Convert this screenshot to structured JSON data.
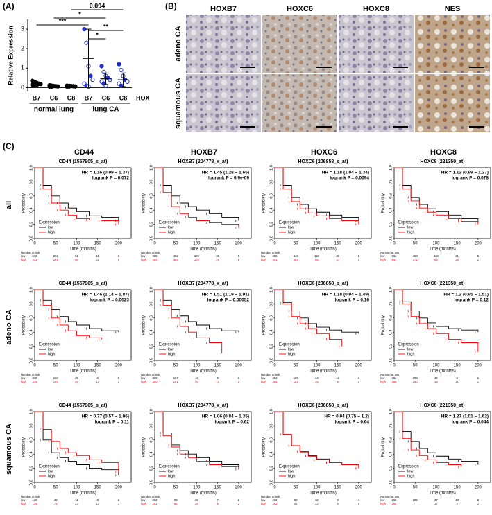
{
  "panel_labels": [
    "(A)",
    "(B)",
    "(C)"
  ],
  "km_axes": {
    "xlim": [
      0,
      230
    ],
    "ylim": [
      0,
      1
    ],
    "xticks": [
      0,
      50,
      100,
      150,
      200
    ],
    "yticks": [
      {
        "value": 0,
        "label": "0.0"
      },
      {
        "value": 0.2,
        "label": "0.2"
      },
      {
        "value": 0.4,
        "label": "0.4"
      },
      {
        "value": 0.6,
        "label": "0.6"
      },
      {
        "value": 0.8,
        "label": "0.8"
      },
      {
        "value": 1,
        "label": "1.0"
      }
    ],
    "xlabel": "Time (months)",
    "ylabel": "Probability",
    "legend_title": "Expression",
    "risk_title": "Number at risk",
    "risk_x": [
      0,
      50,
      100,
      150,
      200
    ]
  },
  "columns": [
    "CD44",
    "HOXB7",
    "HOXC6",
    "HOXC8"
  ],
  "rows": [
    "all",
    "adeno CA",
    "squamous CA"
  ],
  "panel_b": {
    "columns": [
      "HOXB7",
      "HOXC6",
      "HOXC8",
      "NES"
    ],
    "rows": [
      "adeno CA",
      "squamous CA"
    ]
  },
  "chart_data": [
    {
      "type": "dot",
      "ylabel": "Relative Expression",
      "categories": [
        "B7",
        "C6",
        "C8",
        "B7",
        "C6",
        "C8"
      ],
      "axis_label": "HOX",
      "groups": [
        "normal lung",
        "lung CA"
      ],
      "ylim": [
        -0.2,
        3.5
      ],
      "yticks": [
        0,
        1,
        2,
        3
      ],
      "colors": [
        "#000000",
        "#000000",
        "#000000",
        "#2233cc",
        "#2233cc",
        "#2233cc"
      ],
      "points": [
        [
          0.35,
          0.3,
          0.25,
          0.2,
          0.18,
          0.15,
          0.12,
          0.1
        ],
        [
          0.12,
          0.1,
          0.08,
          0.07,
          0.06,
          0.05,
          0.05
        ],
        [
          0.1,
          0.09,
          0.08,
          0.07,
          0.06,
          0.05,
          0.05
        ],
        [
          3.0,
          2.3,
          1.1,
          0.6,
          0.4,
          0.2,
          0.1,
          0.05
        ],
        [
          1.1,
          0.8,
          0.6,
          0.5,
          0.4,
          0.3,
          0.2,
          0.1
        ],
        [
          1.2,
          0.9,
          0.6,
          0.4,
          0.3,
          0.2,
          0.1
        ]
      ],
      "mean": [
        0.2,
        0.08,
        0.07,
        1.5,
        0.45,
        0.4
      ],
      "sd": [
        0.1,
        0.03,
        0.03,
        1.5,
        0.3,
        0.35
      ],
      "brackets": [
        {
          "from": 2,
          "to": 5,
          "label": "0.094"
        },
        {
          "from": 1,
          "to": 4,
          "label": "*"
        },
        {
          "from": 0,
          "to": 3,
          "label": "***"
        },
        {
          "from": 3,
          "to": 5,
          "label": "**"
        },
        {
          "from": 3,
          "to": 4,
          "label": "*"
        }
      ]
    },
    {
      "type": "km",
      "title": "CD44 (1557905_s_at)",
      "hr": "HR = 1.16 (0.99 − 1.37)",
      "logrank": "logrank P = 0.072",
      "x": [
        0,
        20,
        40,
        60,
        80,
        100,
        130,
        160,
        200
      ],
      "series": [
        {
          "name": "low",
          "color": "#000000",
          "values": [
            1,
            0.75,
            0.6,
            0.5,
            0.43,
            0.38,
            0.32,
            0.3,
            0.25
          ],
          "at_risk": [
            572,
            262,
            51,
            15,
            0
          ]
        },
        {
          "name": "high",
          "color": "#ff0000",
          "values": [
            1,
            0.7,
            0.5,
            0.4,
            0.33,
            0.28,
            0.26,
            0.25,
            0.2
          ],
          "at_risk": [
            573,
            284,
            88,
            31,
            6
          ]
        }
      ]
    },
    {
      "type": "km",
      "title": "HOXB7 (204778_x_at)",
      "hr": "HR = 1.45 (1.28 − 1.65)",
      "logrank": "logrank P = 6.9e-09",
      "x": [
        0,
        20,
        40,
        60,
        80,
        100,
        130,
        160,
        200
      ],
      "series": [
        {
          "name": "low",
          "color": "#000000",
          "values": [
            1,
            0.75,
            0.6,
            0.5,
            0.45,
            0.4,
            0.35,
            0.3,
            0.25
          ],
          "at_risk": [
            965,
            462,
            102,
            26,
            5
          ]
        },
        {
          "name": "high",
          "color": "#ff0000",
          "values": [
            1,
            0.65,
            0.45,
            0.35,
            0.3,
            0.25,
            0.22,
            0.2,
            0.15
          ],
          "at_risk": [
            960,
            366,
            101,
            29,
            6
          ]
        }
      ]
    },
    {
      "type": "km",
      "title": "HOXC6 (206858_s_at)",
      "hr": "HR = 1.18 (1.04 − 1.34)",
      "logrank": "logrank P = 0.0094",
      "x": [
        0,
        20,
        40,
        60,
        80,
        100,
        130,
        160,
        200
      ],
      "series": [
        {
          "name": "low",
          "color": "#000000",
          "values": [
            1,
            0.75,
            0.58,
            0.48,
            0.42,
            0.37,
            0.33,
            0.3,
            0.25
          ],
          "at_risk": [
            965,
            445,
            118,
            33,
            6
          ]
        },
        {
          "name": "high",
          "color": "#ff0000",
          "values": [
            1,
            0.7,
            0.52,
            0.42,
            0.36,
            0.32,
            0.28,
            0.25,
            0.2
          ],
          "at_risk": [
            961,
            383,
            85,
            24,
            1
          ]
        }
      ]
    },
    {
      "type": "km",
      "title": "HOXC8 (221350_at)",
      "hr": "HR = 1.12 (0.99 − 1.27)",
      "logrank": "logrank P = 0.078",
      "x": [
        0,
        20,
        40,
        60,
        80,
        100,
        130,
        160,
        200
      ],
      "series": [
        {
          "name": "low",
          "color": "#000000",
          "values": [
            1,
            0.75,
            0.58,
            0.48,
            0.42,
            0.38,
            0.33,
            0.28,
            0.22
          ],
          "at_risk": [
            962,
            450,
            118,
            31,
            5
          ]
        },
        {
          "name": "high",
          "color": "#ff0000",
          "values": [
            1,
            0.7,
            0.53,
            0.43,
            0.37,
            0.33,
            0.28,
            0.24,
            0.2
          ],
          "at_risk": [
            944,
            372,
            85,
            26,
            2
          ]
        }
      ]
    },
    {
      "type": "km",
      "title": "CD44 (1557905_s_at)",
      "hr": "HR = 1.46 (1.14 − 1.87)",
      "logrank": "logrank P = 0.0023",
      "x": [
        0,
        20,
        40,
        60,
        80,
        100,
        130,
        160,
        200
      ],
      "series": [
        {
          "name": "low",
          "color": "#000000",
          "values": [
            1,
            0.85,
            0.72,
            0.62,
            0.55,
            0.5,
            0.45,
            0.42,
            0.4
          ],
          "at_risk": [
            338,
            180,
            29,
            6,
            0
          ]
        },
        {
          "name": "high",
          "color": "#ff0000",
          "values": [
            1,
            0.78,
            0.6,
            0.5,
            0.42,
            0.35,
            0.32,
            0.3,
            null
          ],
          "at_risk": [
            335,
            165,
            49,
            13,
            1
          ]
        }
      ]
    },
    {
      "type": "km",
      "title": "HOXB7 (204778_x_at)",
      "hr": "HR = 1.51 (1.19 − 1.91)",
      "logrank": "logrank P = 0.00052",
      "x": [
        0,
        20,
        40,
        60,
        80,
        100,
        130,
        160,
        200
      ],
      "series": [
        {
          "name": "low",
          "color": "#000000",
          "values": [
            1,
            0.85,
            0.72,
            0.63,
            0.55,
            0.5,
            0.45,
            0.42,
            0.4
          ],
          "at_risk": [
            360,
            187,
            40,
            9,
            1
          ]
        },
        {
          "name": "high",
          "color": "#ff0000",
          "values": [
            1,
            0.78,
            0.6,
            0.48,
            0.4,
            0.32,
            0.25,
            0.1,
            null
          ],
          "at_risk": [
            360,
            161,
            29,
            10,
            0
          ]
        }
      ]
    },
    {
      "type": "km",
      "title": "HOXC6 (206858_s_at)",
      "hr": "HR = 1.18 (0.94 − 1.49)",
      "logrank": "logrank P = 0.16",
      "x": [
        0,
        20,
        40,
        60,
        80,
        100,
        130,
        160,
        200
      ],
      "series": [
        {
          "name": "low",
          "color": "#000000",
          "values": [
            1,
            0.82,
            0.7,
            0.6,
            0.52,
            0.47,
            0.43,
            0.4,
            0.38
          ],
          "at_risk": [
            362,
            185,
            44,
            13,
            1
          ]
        },
        {
          "name": "high",
          "color": "#ff0000",
          "values": [
            1,
            0.8,
            0.62,
            0.52,
            0.45,
            0.38,
            0.3,
            0.2,
            null
          ],
          "at_risk": [
            358,
            163,
            25,
            6,
            0
          ]
        }
      ]
    },
    {
      "type": "km",
      "title": "HOXC8 (221350_at)",
      "hr": "HR = 1.2 (0.95 − 1.51)",
      "logrank": "logrank P = 0.12",
      "x": [
        0,
        20,
        40,
        60,
        80,
        100,
        130,
        160,
        200
      ],
      "series": [
        {
          "name": "low",
          "color": "#000000",
          "values": [
            1,
            0.83,
            0.7,
            0.6,
            0.53,
            0.48,
            0.45,
            0.43,
            0.4
          ],
          "at_risk": [
            362,
            198,
            34,
            9,
            1
          ]
        },
        {
          "name": "high",
          "color": "#ff0000",
          "values": [
            1,
            0.8,
            0.62,
            0.52,
            0.45,
            0.38,
            0.3,
            0.25,
            0.12
          ],
          "at_risk": [
            358,
            150,
            35,
            11,
            1
          ]
        }
      ]
    },
    {
      "type": "km",
      "title": "CD44 (1557905_s_at)",
      "hr": "HR = 0.77 (0.57 − 1.06)",
      "logrank": "logrank P = 0.11",
      "x": [
        0,
        20,
        40,
        60,
        80,
        100,
        130,
        160,
        200
      ],
      "series": [
        {
          "name": "low",
          "color": "#000000",
          "values": [
            1,
            0.6,
            0.42,
            0.35,
            0.3,
            0.25,
            0.2,
            0.18,
            0.1
          ],
          "at_risk": [
            136,
            42,
            11,
            3,
            1
          ]
        },
        {
          "name": "high",
          "color": "#ff0000",
          "values": [
            1,
            0.75,
            0.58,
            0.48,
            0.42,
            0.38,
            0.32,
            0.28,
            0.15
          ],
          "at_risk": [
            135,
            78,
            23,
            12,
            3
          ]
        }
      ]
    },
    {
      "type": "km",
      "title": "HOXB7 (204778_x_at)",
      "hr": "HR = 1.06 (0.84 − 1.35)",
      "logrank": "logrank P = 0.62",
      "x": [
        0,
        20,
        40,
        60,
        80,
        100,
        130,
        160,
        200
      ],
      "series": [
        {
          "name": "low",
          "color": "#000000",
          "values": [
            1,
            0.7,
            0.53,
            0.45,
            0.4,
            0.35,
            0.3,
            0.25,
            0.2
          ],
          "at_risk": [
            262,
            93,
            28,
            7,
            2
          ]
        },
        {
          "name": "high",
          "color": "#ff0000",
          "values": [
            1,
            0.66,
            0.5,
            0.4,
            0.35,
            0.3,
            0.25,
            0.22,
            0.18
          ],
          "at_risk": [
            262,
            66,
            26,
            9,
            2
          ]
        }
      ]
    },
    {
      "type": "km",
      "title": "HOXC6 (206858_s_at)",
      "hr": "HR = 0.94 (0.75 − 1.2)",
      "logrank": "logrank P = 0.64",
      "x": [
        0,
        20,
        40,
        60,
        80,
        100,
        130,
        160,
        200
      ],
      "series": [
        {
          "name": "low",
          "color": "#000000",
          "values": [
            1,
            0.68,
            0.52,
            0.44,
            0.38,
            0.33,
            0.28,
            0.25,
            0.2
          ],
          "at_risk": [
            262,
            88,
            32,
            9,
            4
          ]
        },
        {
          "name": "high",
          "color": "#ff0000",
          "values": [
            1,
            0.68,
            0.52,
            0.43,
            0.37,
            0.32,
            0.28,
            0.25,
            0.2
          ],
          "at_risk": [
            262,
            81,
            22,
            6,
            0
          ]
        }
      ]
    },
    {
      "type": "km",
      "title": "HOXC8 (221350_at)",
      "hr": "HR = 1.27 (1.01 − 1.62)",
      "logrank": "logrank P = 0.044",
      "x": [
        0,
        20,
        40,
        60,
        80,
        100,
        130,
        160,
        200
      ],
      "series": [
        {
          "name": "low",
          "color": "#000000",
          "values": [
            1,
            0.72,
            0.58,
            0.48,
            0.42,
            0.37,
            0.33,
            0.3,
            0.25
          ],
          "at_risk": [
            266,
            102,
            37,
            10,
            2
          ]
        },
        {
          "name": "high",
          "color": "#ff0000",
          "values": [
            1,
            0.62,
            0.46,
            0.38,
            0.32,
            0.28,
            0.25,
            0.22,
            null
          ],
          "at_risk": [
            258,
            77,
            17,
            5,
            2
          ]
        }
      ]
    }
  ]
}
